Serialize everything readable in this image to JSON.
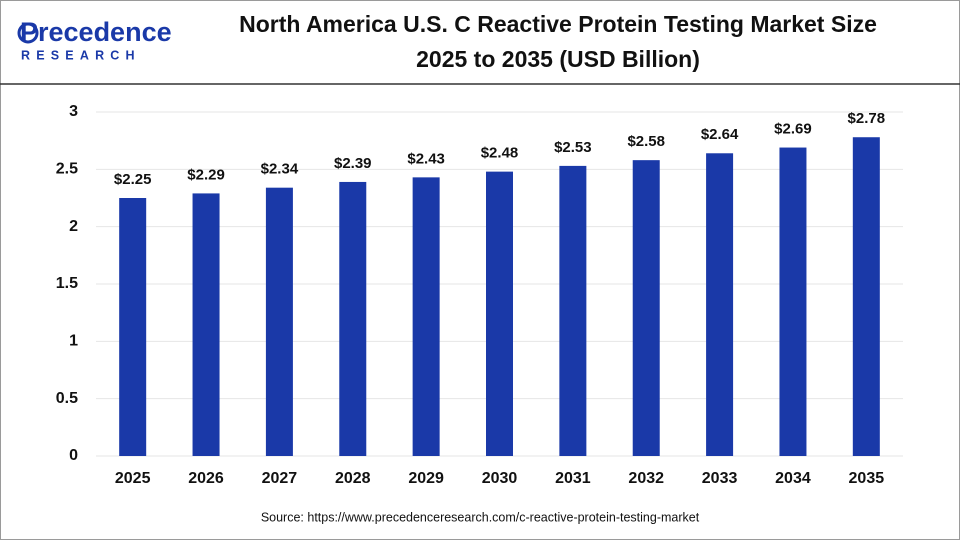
{
  "logo": {
    "name": "Precedence",
    "tagline": "RESEARCH"
  },
  "chart_data": {
    "type": "bar",
    "title": "North America U.S. C Reactive Protein Testing Market Size",
    "subtitle": "2025 to 2035 (USD Billion)",
    "categories": [
      "2025",
      "2026",
      "2027",
      "2028",
      "2029",
      "2030",
      "2031",
      "2032",
      "2033",
      "2034",
      "2035"
    ],
    "values": [
      2.25,
      2.29,
      2.34,
      2.39,
      2.43,
      2.48,
      2.53,
      2.58,
      2.64,
      2.69,
      2.78
    ],
    "value_labels": [
      "$2.25",
      "$2.29",
      "$2.34",
      "$2.39",
      "$2.43",
      "$2.48",
      "$2.53",
      "$2.58",
      "$2.64",
      "$2.69",
      "$2.78"
    ],
    "color": "#1a39a8",
    "ylim": [
      0,
      3
    ],
    "yticks": [
      0,
      0.5,
      1,
      1.5,
      2,
      2.5,
      3
    ],
    "grid": true,
    "source": "Source: https://www.precedenceresearch.com/c-reactive-protein-testing-market"
  }
}
